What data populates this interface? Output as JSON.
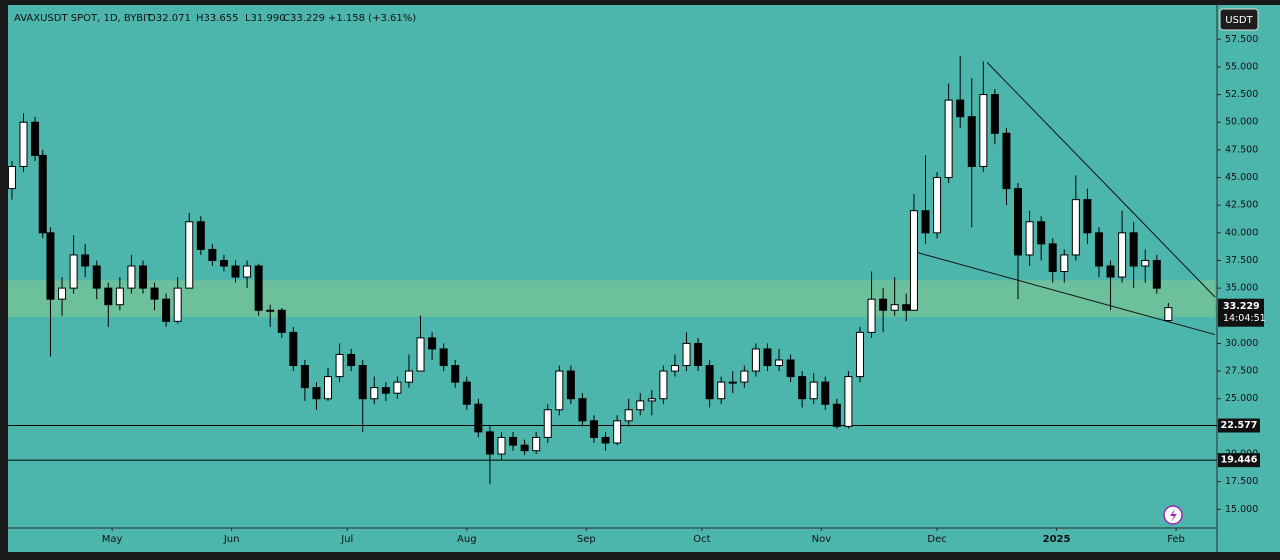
{
  "chart_data": {
    "type": "candlestick",
    "header": {
      "symbol": "AVAXUSDT SPOT, 1D, BYBIT",
      "open": "O32.071",
      "high": "H33.655",
      "low": "L31.990",
      "close": "C33.229",
      "change": "+1.158 (+3.61%)"
    },
    "currency": "USDT",
    "countdown": "14:04:51",
    "x": [
      -26,
      -23,
      -20,
      -18,
      -16,
      -13,
      -10,
      -7,
      -4,
      -1,
      2,
      5,
      8,
      11,
      14,
      17,
      20,
      23,
      26,
      29,
      32,
      35,
      38,
      41,
      44,
      47,
      50,
      53,
      56,
      59,
      62,
      65,
      68,
      71,
      74,
      77,
      80,
      83,
      86,
      89,
      92,
      95,
      98,
      101,
      104,
      107,
      110,
      113,
      116,
      119,
      122,
      125,
      128,
      131,
      134,
      137,
      140,
      143,
      146,
      149,
      152,
      155,
      158,
      161,
      164,
      167,
      170,
      173,
      176,
      179,
      182,
      185,
      188,
      191,
      194,
      197,
      200,
      203,
      206,
      208,
      211,
      214,
      217,
      220,
      223,
      226,
      229,
      232,
      235,
      238,
      241,
      244,
      247,
      250,
      253,
      256,
      259,
      262,
      265,
      268,
      271,
      274
    ],
    "open": [
      44,
      46,
      50,
      47,
      40,
      34,
      35,
      38,
      37,
      35,
      33.5,
      35,
      37,
      35,
      34,
      32,
      35,
      41,
      38.5,
      37.5,
      37,
      36,
      37,
      33,
      33,
      31,
      28,
      26,
      25,
      27,
      29,
      28,
      25,
      26,
      25.5,
      26.5,
      27.5,
      30.5,
      29.5,
      28,
      26.5,
      24.5,
      22,
      20,
      21.5,
      20.8,
      20.3,
      21.5,
      24,
      27.5,
      25,
      23,
      21.5,
      21,
      23,
      24,
      24.8,
      25,
      27.5,
      28,
      30,
      28,
      25,
      26.5,
      26.5,
      27.5,
      29.5,
      28,
      28.5,
      27,
      25,
      26.5,
      24.5,
      22.5,
      27,
      31,
      34,
      33,
      33.5,
      33,
      42,
      40,
      45,
      52,
      50.5,
      46,
      52.5,
      49,
      44,
      38,
      41,
      39,
      36.5,
      38,
      43,
      40,
      37,
      36,
      40,
      37,
      37.5,
      32.071
    ],
    "high": [
      46.5,
      50.8,
      50.5,
      47.5,
      40.5,
      36,
      39.8,
      39,
      37.5,
      35.5,
      36,
      38,
      37.5,
      35.5,
      34.5,
      36,
      41.8,
      41.5,
      39,
      38,
      37.5,
      37.5,
      37.2,
      33.5,
      33.2,
      31.5,
      28.5,
      26.5,
      27.8,
      30,
      29.5,
      28.5,
      27,
      26.5,
      27,
      29,
      32.5,
      31,
      30,
      28.5,
      27,
      25,
      22.5,
      22,
      22,
      21.3,
      22,
      24.5,
      28,
      28,
      25.5,
      23.5,
      22,
      23.5,
      25,
      25.5,
      25.8,
      28,
      29,
      31,
      30.5,
      28.5,
      27,
      27.5,
      28,
      30,
      30,
      29.5,
      29,
      27.5,
      27.3,
      27,
      25,
      27.5,
      31.5,
      36.5,
      35,
      36,
      34.5,
      43.5,
      47,
      45.5,
      53.5,
      56,
      54,
      55.5,
      53,
      49.5,
      44.5,
      42,
      41.5,
      39.5,
      38.5,
      45.2,
      44,
      40.5,
      37.5,
      42,
      41,
      38.5,
      38,
      33.655
    ],
    "low": [
      43,
      45.5,
      46.5,
      39.5,
      28.8,
      32.5,
      34.5,
      36,
      34,
      31.5,
      33,
      34.5,
      34.5,
      33,
      31.5,
      31.8,
      35,
      38,
      37,
      36.5,
      35.5,
      35,
      32.5,
      31.5,
      30.5,
      27.5,
      24.8,
      24,
      24.8,
      26.5,
      27.5,
      22,
      24.5,
      24.8,
      25,
      26,
      27.5,
      28.5,
      27.5,
      26,
      24,
      21.5,
      17.3,
      19.5,
      20.3,
      19.9,
      20,
      21,
      23.5,
      24.5,
      22.5,
      21,
      20.3,
      20.8,
      22.5,
      23.5,
      23.5,
      24.5,
      27,
      27.5,
      27.5,
      24.2,
      24.5,
      25.5,
      26,
      27,
      27.5,
      27.5,
      26.5,
      24.2,
      24.5,
      24,
      22.3,
      22.3,
      26.5,
      30.5,
      31,
      32.5,
      32,
      33,
      39,
      39.5,
      44.5,
      49.5,
      40.5,
      45.5,
      48,
      42.5,
      34,
      37,
      37.5,
      35.5,
      35.5,
      37.5,
      39,
      36,
      33,
      35.5,
      35,
      35.5,
      34.5,
      31.99
    ],
    "close": [
      46,
      50,
      47,
      40,
      34,
      35,
      38,
      37,
      35,
      33.5,
      35,
      37,
      35,
      34,
      32,
      35,
      41,
      38.5,
      37.5,
      37,
      36,
      37,
      33,
      33,
      31,
      28,
      26,
      25,
      27,
      29,
      28,
      25,
      26,
      25.5,
      26.5,
      27.5,
      30.5,
      29.5,
      28,
      26.5,
      24.5,
      22,
      20,
      21.5,
      20.8,
      20.3,
      21.5,
      24,
      27.5,
      25,
      23,
      21.5,
      21,
      23,
      24,
      24.8,
      25,
      27.5,
      28,
      30,
      28,
      25,
      26.5,
      26.5,
      27.5,
      29.5,
      28,
      28.5,
      27,
      25,
      26.5,
      24.5,
      22.5,
      27,
      31,
      34,
      33,
      33.5,
      33,
      42,
      40,
      45,
      52,
      50.5,
      46,
      52.5,
      49,
      44,
      38,
      41,
      39,
      36.5,
      38,
      43,
      40,
      37,
      36,
      40,
      37,
      37.5,
      35,
      33.229
    ],
    "up_color": "#ffffff",
    "down_color": "#000000",
    "background": "#4db6ac",
    "zone": {
      "from": 32.4,
      "to": 35.7,
      "color": "#6cc09c"
    },
    "hlines": [
      22.577,
      19.446
    ],
    "trendlines": [
      {
        "x": [
          227,
          286.1
        ],
        "y": [
          55.4,
          34.2
        ]
      },
      {
        "x": [
          208,
          286.1
        ],
        "y": [
          38.3,
          30.8
        ]
      }
    ],
    "xlim": [
      -26.5,
      286.1
    ],
    "xticks": [
      {
        "value": 0,
        "label": "May"
      },
      {
        "value": 31,
        "label": "Jun"
      },
      {
        "value": 61,
        "label": "Jul"
      },
      {
        "value": 92,
        "label": "Aug"
      },
      {
        "value": 123,
        "label": "Sep"
      },
      {
        "value": 153,
        "label": "Oct"
      },
      {
        "value": 184,
        "label": "Nov"
      },
      {
        "value": 214,
        "label": "Dec"
      },
      {
        "value": 245,
        "label": "2025"
      },
      {
        "value": 276,
        "label": "Feb"
      }
    ],
    "ylim": [
      13.4,
      60.6
    ],
    "yticks": [
      {
        "value": 15,
        "label": "15.000"
      },
      {
        "value": 17.5,
        "label": "17.500"
      },
      {
        "value": 20,
        "label": "20.000"
      },
      {
        "value": 22.5,
        "label": "22.500"
      },
      {
        "value": 25,
        "label": "25.000"
      },
      {
        "value": 27.5,
        "label": "27.500"
      },
      {
        "value": 30,
        "label": "30.000"
      },
      {
        "value": 32.5,
        "label": "32.500"
      },
      {
        "value": 35,
        "label": "35.000"
      },
      {
        "value": 37.5,
        "label": "37.500"
      },
      {
        "value": 40,
        "label": "40.000"
      },
      {
        "value": 42.5,
        "label": "42.500"
      },
      {
        "value": 45,
        "label": "45.000"
      },
      {
        "value": 47.5,
        "label": "47.500"
      },
      {
        "value": 50,
        "label": "50.000"
      },
      {
        "value": 52.5,
        "label": "52.500"
      },
      {
        "value": 55,
        "label": "55.000"
      },
      {
        "value": 57.5,
        "label": "57.500"
      }
    ]
  }
}
